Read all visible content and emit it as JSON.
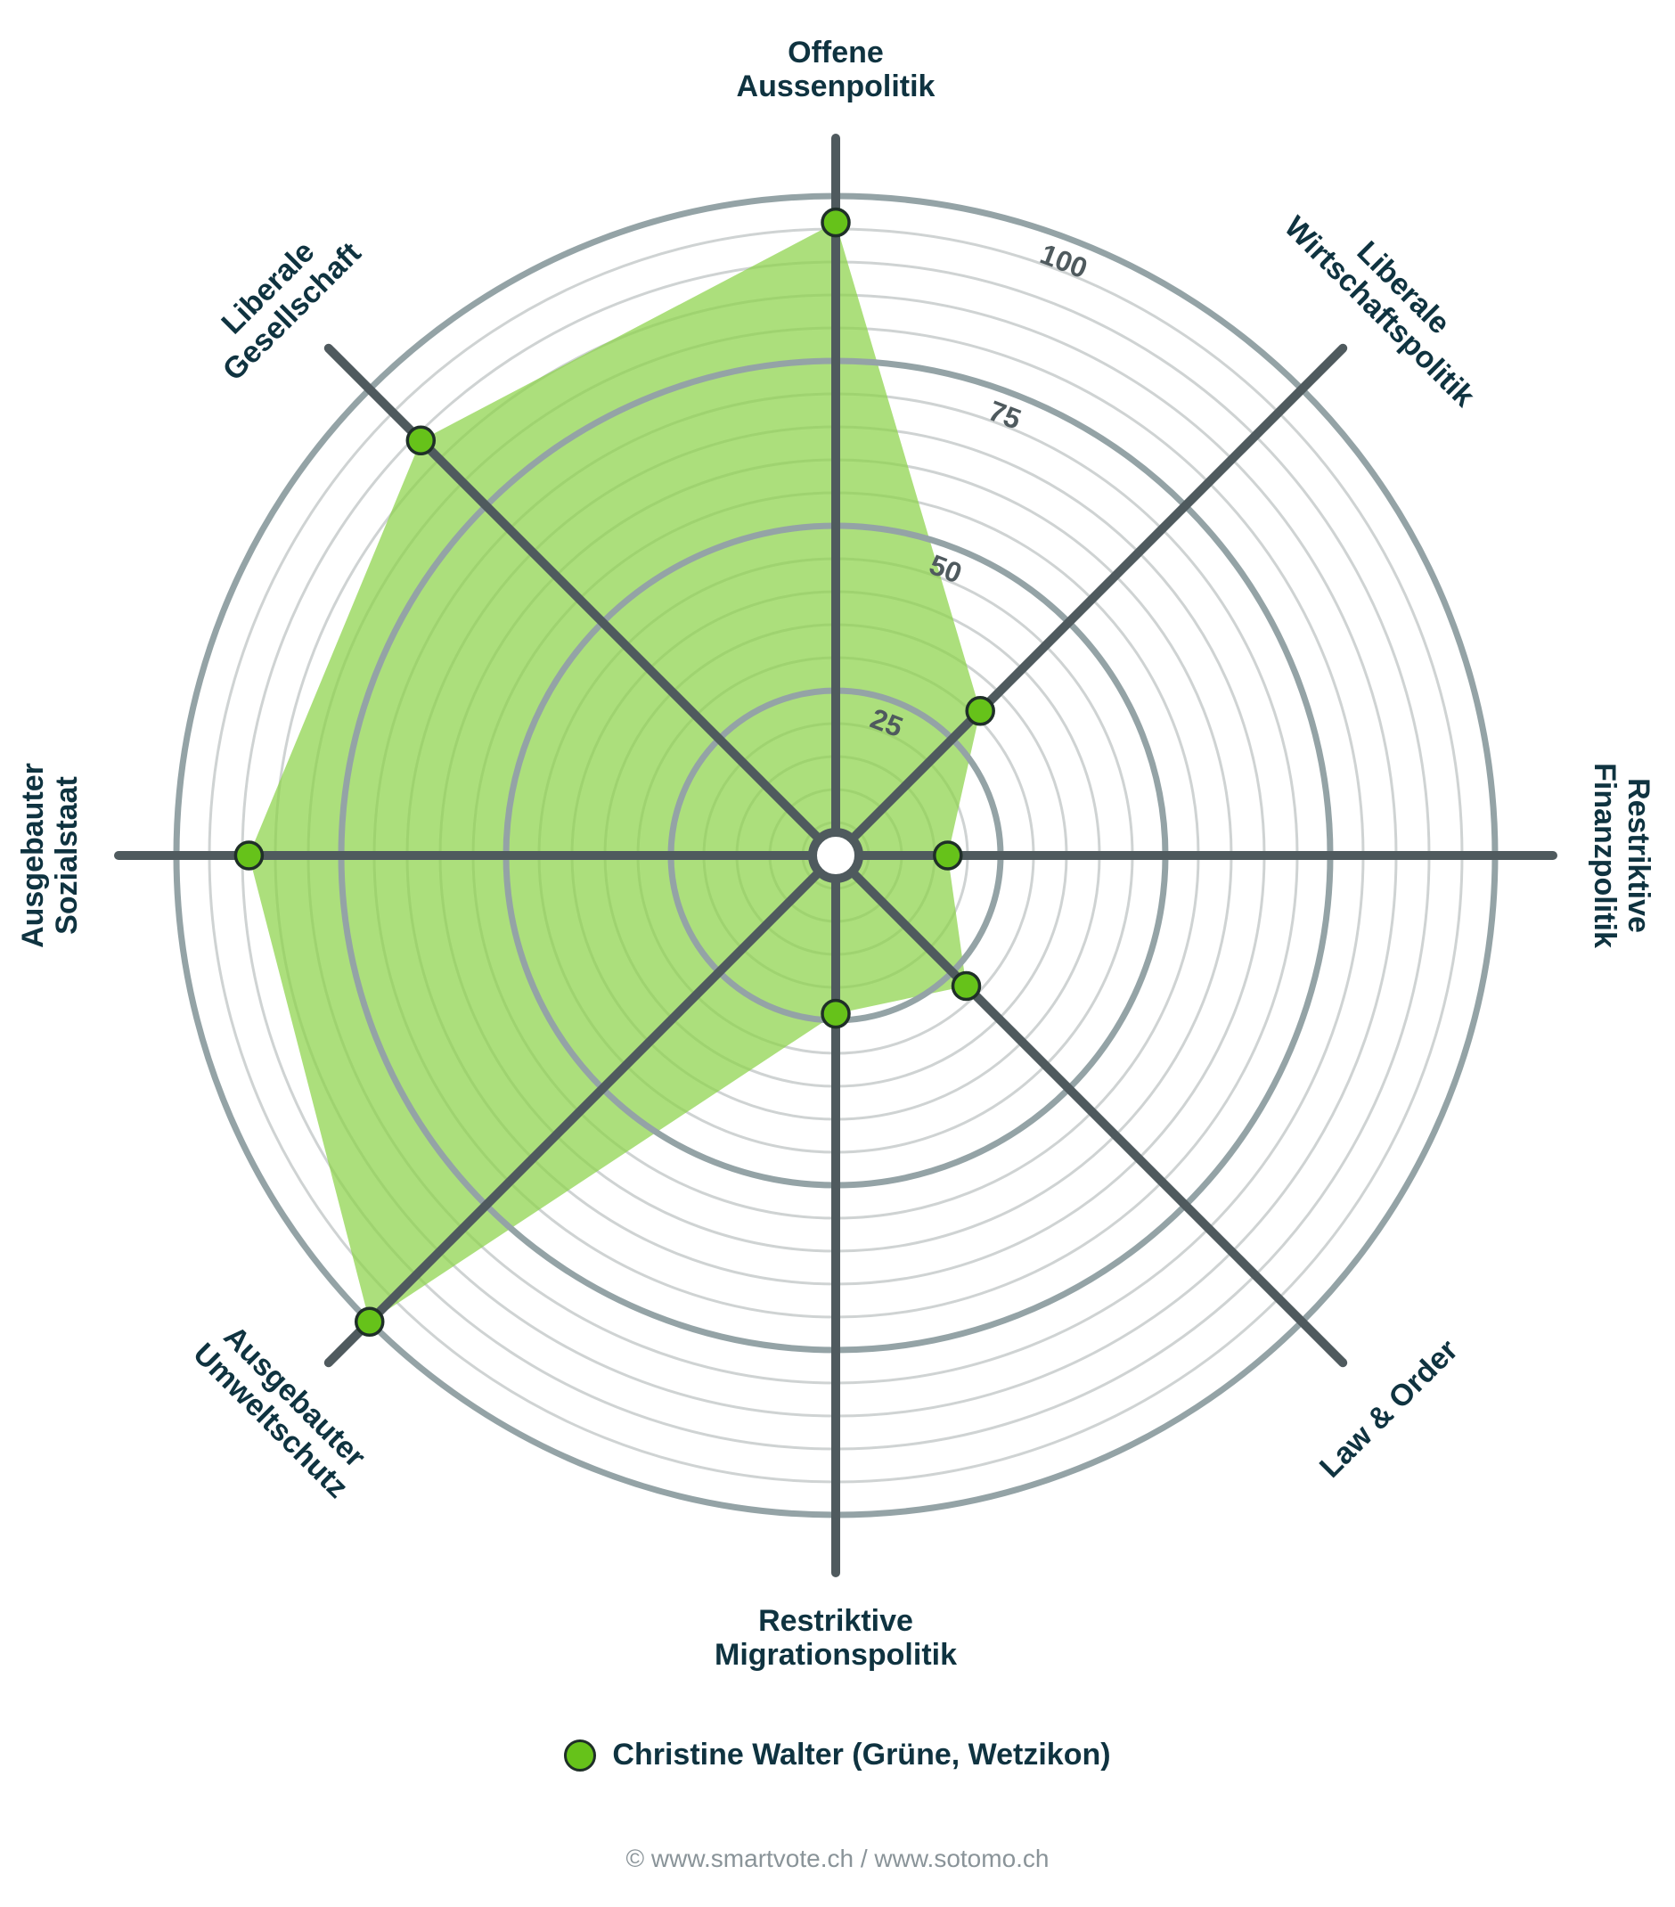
{
  "chart_data": {
    "type": "radar",
    "axes": [
      {
        "label": [
          "Offene",
          "Aussenpolitik"
        ],
        "value": 96
      },
      {
        "label": [
          "Liberale",
          "Wirtschaftspolitik"
        ],
        "value": 31
      },
      {
        "label": [
          "Restriktive",
          "Finanzpolitik"
        ],
        "value": 17
      },
      {
        "label": [
          "Law & Order"
        ],
        "value": 28
      },
      {
        "label": [
          "Restriktive",
          "Migrationspolitik"
        ],
        "value": 24
      },
      {
        "label": [
          "Ausgebauter",
          "Umweltschutz"
        ],
        "value": 100
      },
      {
        "label": [
          "Ausgebauter",
          "Sozialstaat"
        ],
        "value": 89
      },
      {
        "label": [
          "Liberale",
          "Gesellschaft"
        ],
        "value": 89
      }
    ],
    "rlim": [
      0,
      100
    ],
    "ticks": [
      25,
      50,
      75,
      100
    ],
    "minor_step": 5,
    "series": [
      {
        "name": "Christine Walter (Grüne, Wetzikon)",
        "color": "#66c21a",
        "fill": "#8cd24a"
      }
    ],
    "legend_position": "bottom"
  },
  "legend": {
    "label": "Christine Walter (Grüne, Wetzikon)"
  },
  "credit": "© www.smartvote.ch / www.sotomo.ch",
  "colors": {
    "major_ring": "#94a3a6",
    "minor_ring": "#cfd3d3",
    "axis": "#4f5a5e",
    "label": "#0f3340"
  }
}
